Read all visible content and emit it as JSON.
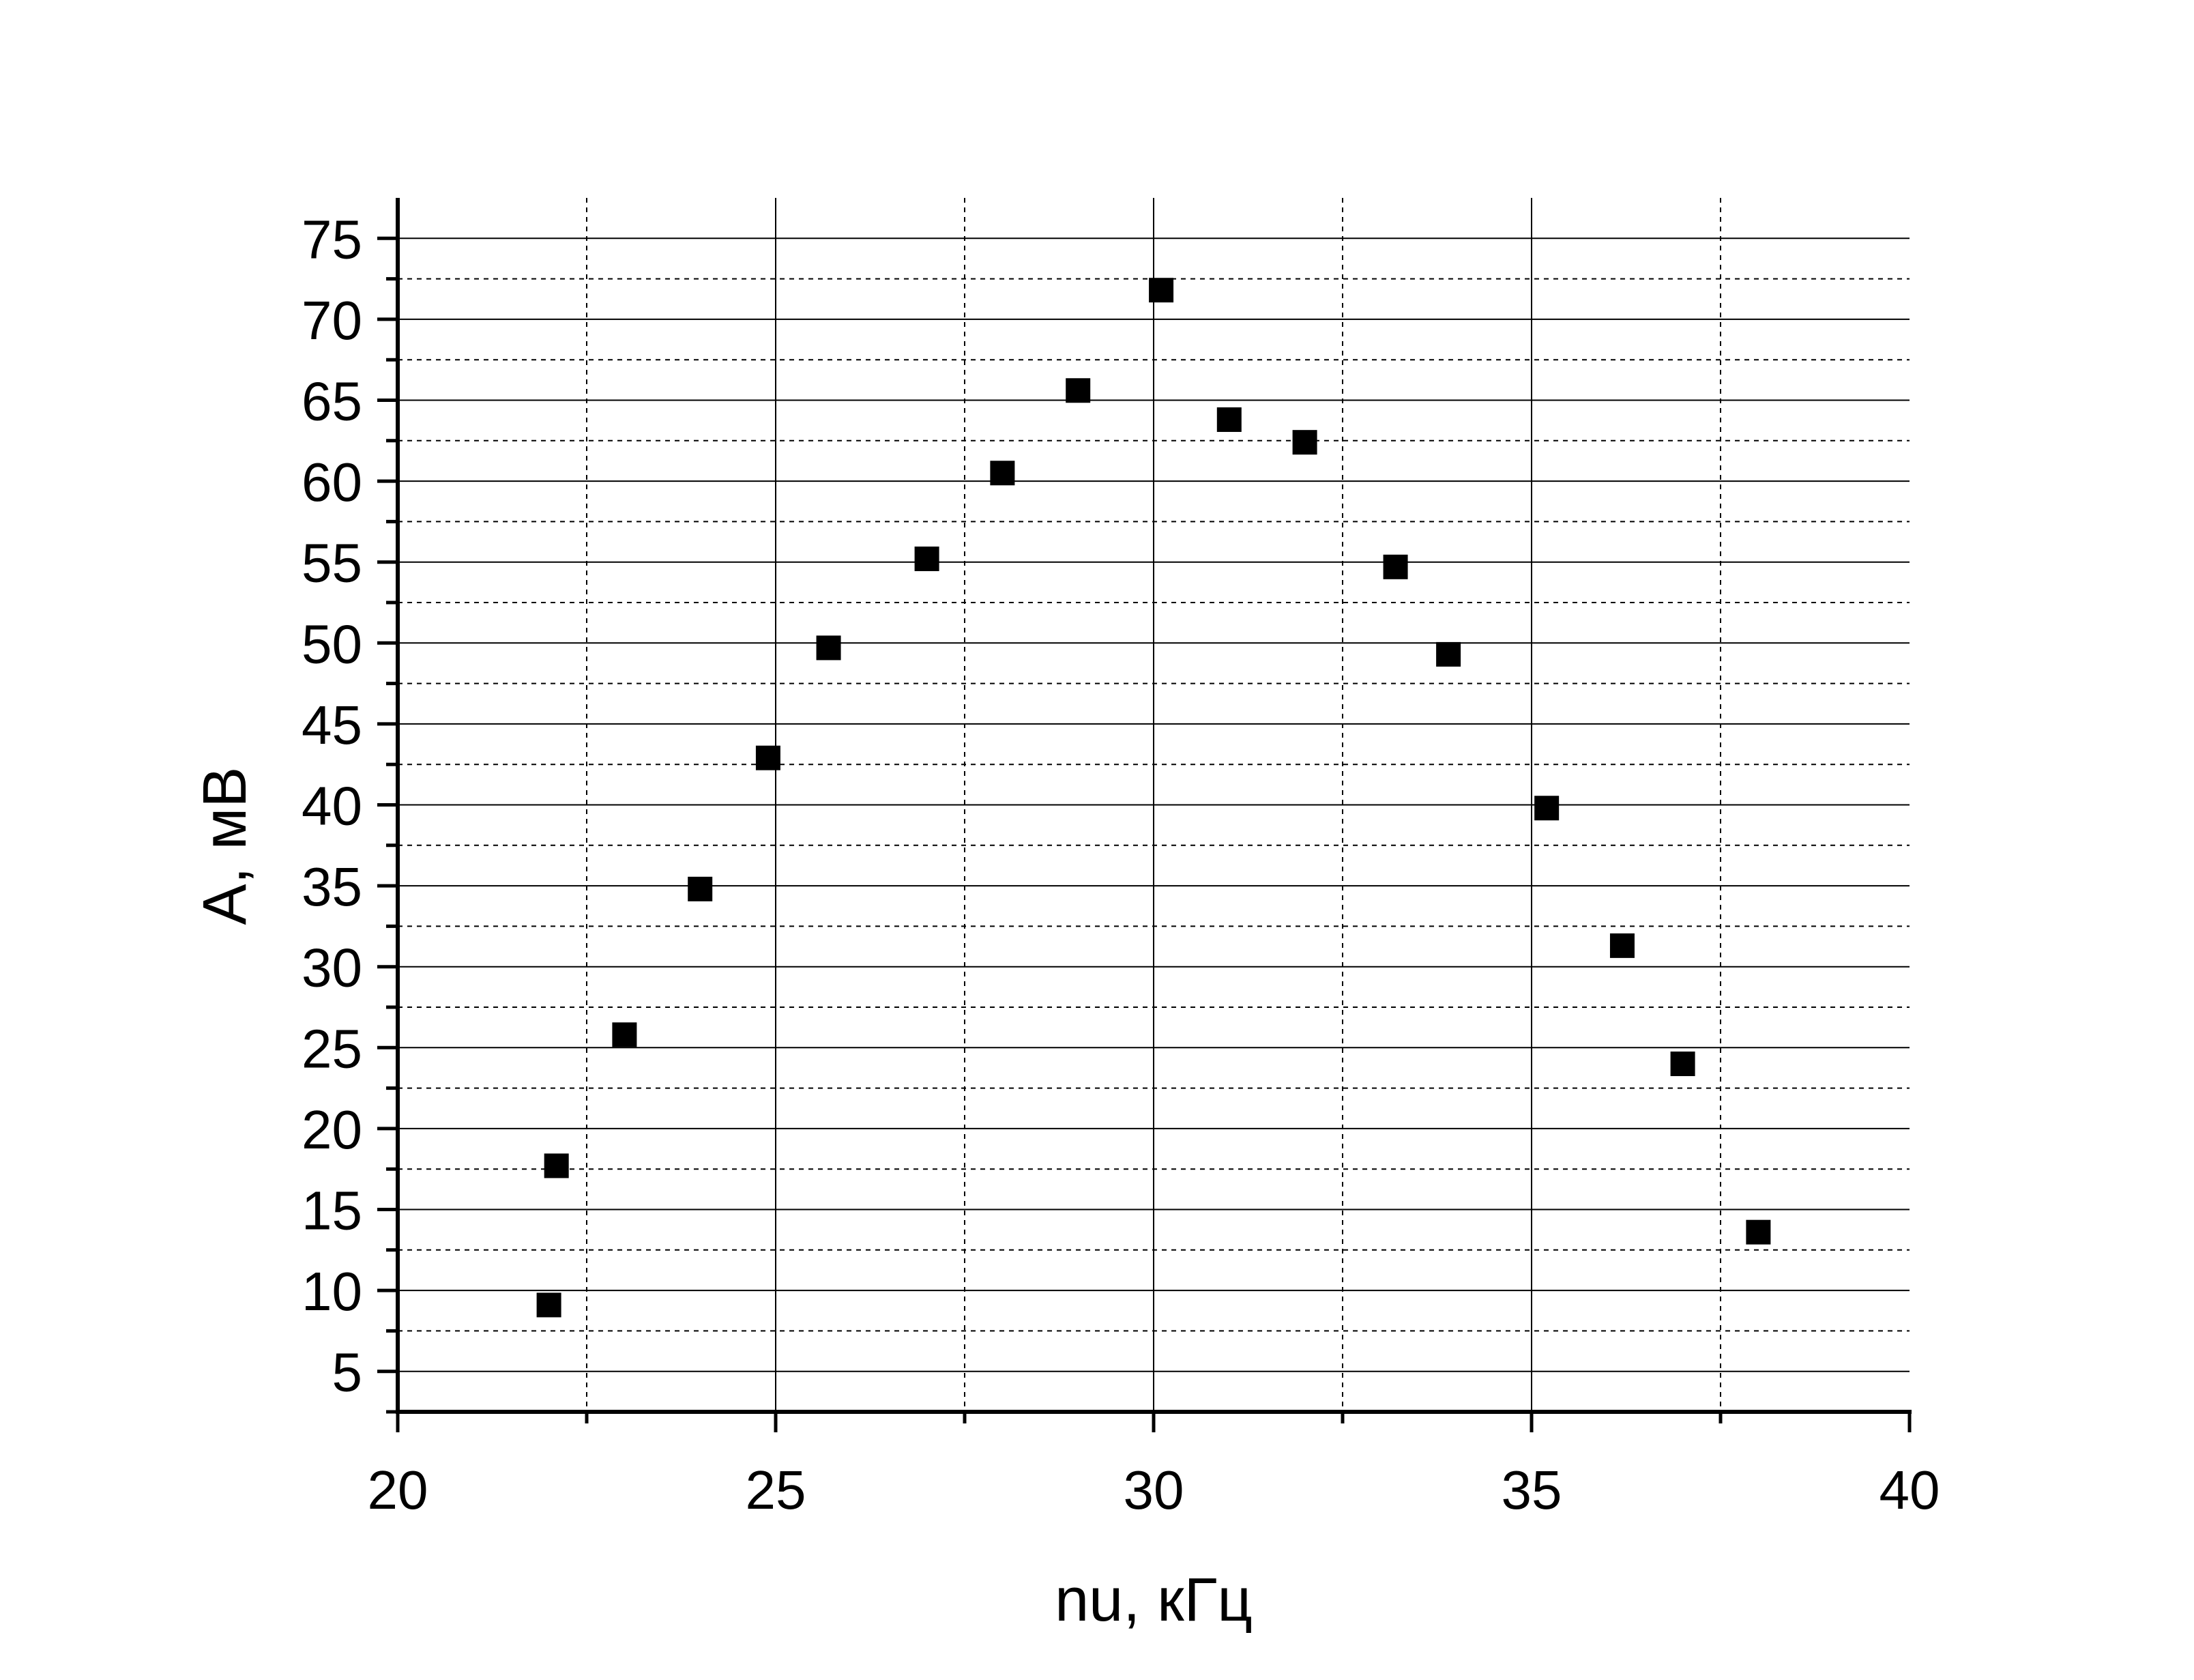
{
  "chart_data": {
    "type": "scatter",
    "title": "",
    "xlabel": "nu, кГц",
    "ylabel": "A, мВ",
    "xlim": [
      20,
      40
    ],
    "ylim": [
      2.5,
      77.5
    ],
    "x_ticks": [
      20,
      25,
      30,
      35,
      40
    ],
    "x_tick_labels": [
      "20",
      "25",
      "30",
      "35",
      "40"
    ],
    "y_ticks": [
      5,
      10,
      15,
      20,
      25,
      30,
      35,
      40,
      45,
      50,
      55,
      60,
      65,
      70,
      75
    ],
    "y_tick_labels": [
      "5",
      "10",
      "15",
      "20",
      "25",
      "30",
      "35",
      "40",
      "45",
      "50",
      "55",
      "60",
      "65",
      "70",
      "75"
    ],
    "grid": true,
    "legend": "none",
    "marker": "square",
    "marker_color": "#000000",
    "series": [
      {
        "x": [
          22.0,
          22.1,
          23.0,
          24.0,
          24.9,
          25.7,
          27.0,
          28.0,
          29.0,
          30.1,
          31.0,
          32.0,
          33.2,
          33.9,
          35.2,
          36.2,
          37.0,
          38.0
        ],
        "y": [
          9.1,
          17.7,
          25.8,
          34.8,
          42.9,
          49.7,
          55.2,
          60.5,
          65.6,
          71.8,
          63.8,
          62.4,
          54.7,
          49.3,
          39.8,
          31.3,
          24.0,
          13.6
        ]
      }
    ]
  }
}
